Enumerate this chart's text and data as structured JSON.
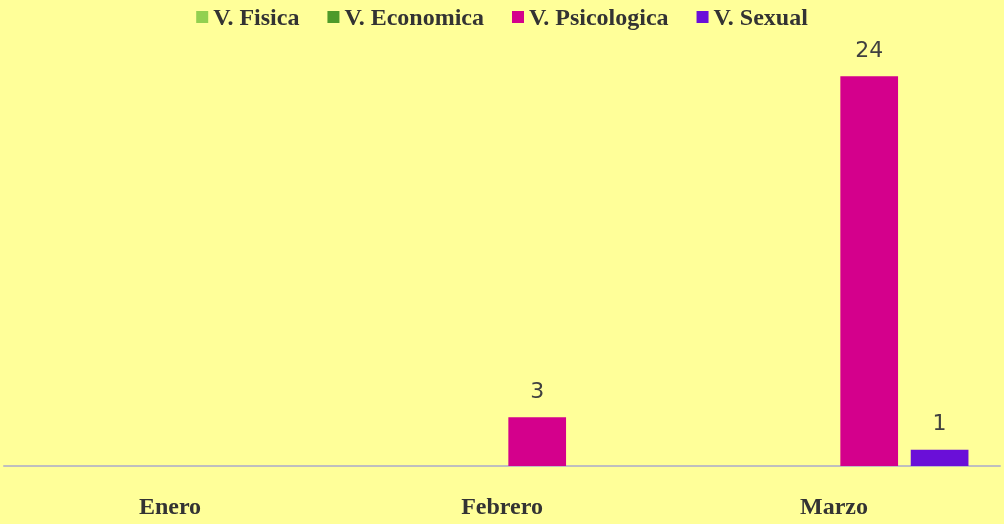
{
  "chart_data": {
    "type": "bar",
    "categories": [
      "Enero",
      "Febrero",
      "Marzo"
    ],
    "series": [
      {
        "name": "V. Fisica",
        "color": "#92d050",
        "values": [
          null,
          null,
          null
        ]
      },
      {
        "name": "V. Economica",
        "color": "#4e9a2a",
        "values": [
          null,
          null,
          null
        ]
      },
      {
        "name": "V. Psicologica",
        "color": "#d4008c",
        "values": [
          null,
          3,
          24
        ]
      },
      {
        "name": "V. Sexual",
        "color": "#6a0fd8",
        "values": [
          null,
          null,
          1
        ]
      }
    ],
    "data_labels": true,
    "legend": "top"
  }
}
